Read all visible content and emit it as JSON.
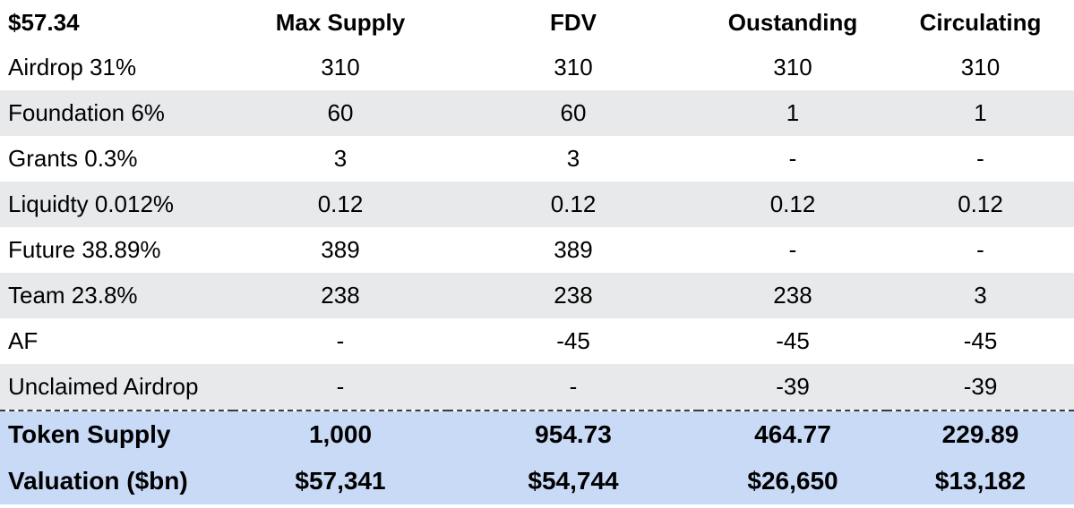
{
  "header": {
    "price": "$57.34",
    "columns": [
      "Max Supply",
      "FDV",
      "Oustanding",
      "Circulating"
    ]
  },
  "rows": [
    {
      "label": "Airdrop 31%",
      "values": [
        "310",
        "310",
        "310",
        "310"
      ]
    },
    {
      "label": "Foundation 6%",
      "values": [
        "60",
        "60",
        "1",
        "1"
      ]
    },
    {
      "label": "Grants 0.3%",
      "values": [
        "3",
        "3",
        "-",
        "-"
      ]
    },
    {
      "label": "Liquidty 0.012%",
      "values": [
        "0.12",
        "0.12",
        "0.12",
        "0.12"
      ]
    },
    {
      "label": "Future 38.89%",
      "values": [
        "389",
        "389",
        "-",
        "-"
      ]
    },
    {
      "label": "Team 23.8%",
      "values": [
        "238",
        "238",
        "238",
        "3"
      ]
    },
    {
      "label": "AF",
      "values": [
        "-",
        "-45",
        "-45",
        "-45"
      ]
    },
    {
      "label": "Unclaimed Airdrop",
      "values": [
        "-",
        "-",
        "-39",
        "-39"
      ]
    }
  ],
  "totals": [
    {
      "label": "Token Supply",
      "values": [
        "1,000",
        "954.73",
        "464.77",
        "229.89"
      ]
    },
    {
      "label": "Valuation ($bn)",
      "values": [
        "$57,341",
        "$54,744",
        "$26,650",
        "$13,182"
      ]
    }
  ],
  "colors": {
    "stripe": "#e7e9ea",
    "summary_bg": "#c9daf7",
    "divider": "#3b3b3b"
  }
}
